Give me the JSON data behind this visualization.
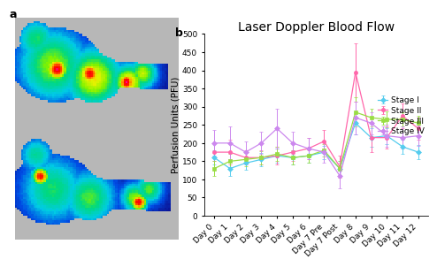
{
  "title": "Laser Doppler Blood Flow",
  "ylabel": "Perfusion Units (PFU)",
  "xlabel": "",
  "xlabels": [
    "Day 0",
    "Day 1",
    "Day 2",
    "Day 3",
    "Day 4",
    "Day 5",
    "Day 6",
    "Day 7 Pre",
    "Day 7 Post",
    "Day 8",
    "Day 9",
    "Day 10",
    "Day 11",
    "Day 12"
  ],
  "ylim": [
    0,
    500
  ],
  "yticks": [
    0,
    50,
    100,
    150,
    200,
    250,
    300,
    350,
    400,
    450,
    500
  ],
  "series": {
    "Stage I": {
      "color": "#55CCEE",
      "marker": "D",
      "values": [
        160,
        130,
        145,
        155,
        165,
        160,
        165,
        175,
        130,
        255,
        215,
        220,
        190,
        175
      ],
      "errors": [
        20,
        20,
        18,
        18,
        20,
        20,
        18,
        18,
        20,
        30,
        25,
        22,
        20,
        20
      ]
    },
    "Stage II": {
      "color": "#FF66AA",
      "marker": "o",
      "values": [
        175,
        175,
        160,
        160,
        165,
        175,
        185,
        205,
        135,
        395,
        215,
        215,
        275,
        240
      ],
      "errors": [
        25,
        35,
        20,
        20,
        25,
        25,
        30,
        30,
        30,
        80,
        40,
        30,
        35,
        30
      ]
    },
    "Stage III": {
      "color": "#99DD44",
      "marker": "s",
      "values": [
        130,
        150,
        155,
        160,
        170,
        160,
        165,
        180,
        130,
        285,
        270,
        265,
        265,
        255
      ],
      "errors": [
        20,
        20,
        18,
        18,
        20,
        20,
        18,
        18,
        20,
        40,
        25,
        22,
        20,
        20
      ]
    },
    "Stage IV": {
      "color": "#CC88EE",
      "marker": "D",
      "values": [
        200,
        200,
        175,
        200,
        240,
        200,
        185,
        175,
        110,
        270,
        255,
        220,
        215,
        220
      ],
      "errors": [
        35,
        45,
        30,
        30,
        55,
        30,
        30,
        30,
        35,
        45,
        30,
        30,
        30,
        28
      ]
    }
  },
  "legend_order": [
    "Stage I",
    "Stage II",
    "Stage III",
    "Stage IV"
  ],
  "title_fontsize": 10,
  "label_fontsize": 7.5,
  "tick_fontsize": 6.5,
  "legend_fontsize": 6.5,
  "bg_gray": "#b8b8b8",
  "background_color": "#ffffff"
}
